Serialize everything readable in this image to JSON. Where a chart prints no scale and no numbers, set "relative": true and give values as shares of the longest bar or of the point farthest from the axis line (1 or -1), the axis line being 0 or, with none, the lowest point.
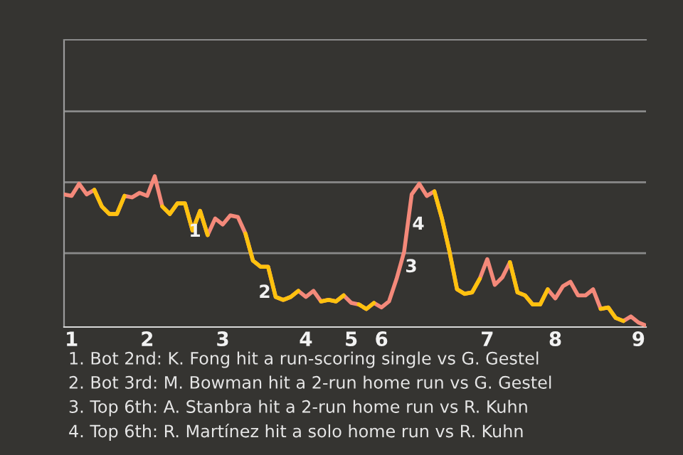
{
  "chart_data": {
    "type": "line",
    "relative": true,
    "categories": [
      null,
      "1",
      null,
      null,
      null,
      null,
      null,
      null,
      null,
      null,
      null,
      "2",
      null,
      null,
      null,
      null,
      null,
      null,
      null,
      null,
      null,
      "3",
      null,
      null,
      null,
      null,
      null,
      null,
      null,
      null,
      null,
      null,
      "4",
      null,
      null,
      null,
      null,
      null,
      "5",
      null,
      null,
      null,
      "6",
      null,
      null,
      null,
      null,
      null,
      null,
      null,
      null,
      null,
      null,
      null,
      null,
      null,
      "7",
      null,
      null,
      null,
      null,
      null,
      null,
      null,
      null,
      "8",
      null,
      null,
      null,
      null,
      null,
      null,
      null,
      null,
      null,
      null,
      "9",
      null
    ],
    "series": [
      {
        "color": "#f4897a",
        "values": [
          0.88,
          0.87,
          0.95,
          0.88,
          0.91,
          0.8,
          0.75,
          0.75,
          0.87,
          0.86,
          0.89,
          0.87,
          1.0,
          0.8,
          0.75,
          0.82,
          0.82,
          0.64,
          0.77,
          0.61,
          0.72,
          0.68,
          0.74,
          0.73,
          0.62,
          0.44,
          0.4,
          0.4,
          0.2,
          0.18,
          0.2,
          0.24,
          0.2,
          0.24,
          0.17,
          0.18,
          0.17,
          0.21,
          0.16,
          0.15,
          0.12,
          0.16,
          0.13,
          0.17,
          0.32,
          0.5,
          0.88,
          0.95,
          0.87,
          0.9,
          0.72,
          0.5,
          0.25,
          0.22,
          0.23,
          0.32,
          0.45,
          0.28,
          0.33,
          0.43,
          0.23,
          0.21,
          0.15,
          0.15,
          0.25,
          0.19,
          0.27,
          0.3,
          0.21,
          0.21,
          0.25,
          0.12,
          0.13,
          0.06,
          0.04,
          0.07,
          0.03,
          0.01
        ]
      },
      {
        "color": "#ffc20e",
        "values": [
          null,
          null,
          null,
          null,
          0.91,
          0.8,
          0.75,
          0.75,
          0.87,
          null,
          null,
          null,
          null,
          0.8,
          0.75,
          0.82,
          0.82,
          0.64,
          0.77,
          0.61,
          null,
          null,
          null,
          null,
          0.62,
          0.44,
          0.4,
          0.4,
          0.2,
          0.18,
          0.2,
          0.24,
          null,
          null,
          0.17,
          0.18,
          0.17,
          0.21,
          null,
          0.15,
          0.12,
          0.16,
          null,
          null,
          null,
          null,
          null,
          null,
          null,
          0.9,
          0.72,
          0.5,
          0.25,
          0.22,
          0.23,
          0.32,
          null,
          null,
          null,
          0.43,
          0.23,
          0.21,
          0.15,
          0.15,
          0.25,
          null,
          null,
          null,
          null,
          null,
          null,
          0.12,
          0.13,
          0.06,
          0.04,
          null,
          null,
          null
        ]
      }
    ],
    "ref_lines": [
      {
        "axis": "y",
        "value": 0.49,
        "color": "#8a8a8a"
      },
      {
        "axis": "y",
        "value": 0.96,
        "color": "#8a8a8a"
      },
      {
        "axis": "y",
        "value": 1.43,
        "color": "#8a8a8a"
      }
    ],
    "annotations": [
      "1",
      "2",
      "3",
      "4",
      "1. Bot 2nd: K. Fong hit a run-scoring single vs G. Gestel",
      "2. Bot 3rd: M. Bowman hit a 2-run home run vs G. Gestel",
      "3. Top 6th: A. Stanbra hit a 2-run home run vs R. Kuhn",
      "4. Top 6th: R. Martínez hit a solo home run vs R. Kuhn"
    ],
    "tick_labels": "x",
    "legend": false,
    "marker": "none",
    "line_style": "solid"
  }
}
